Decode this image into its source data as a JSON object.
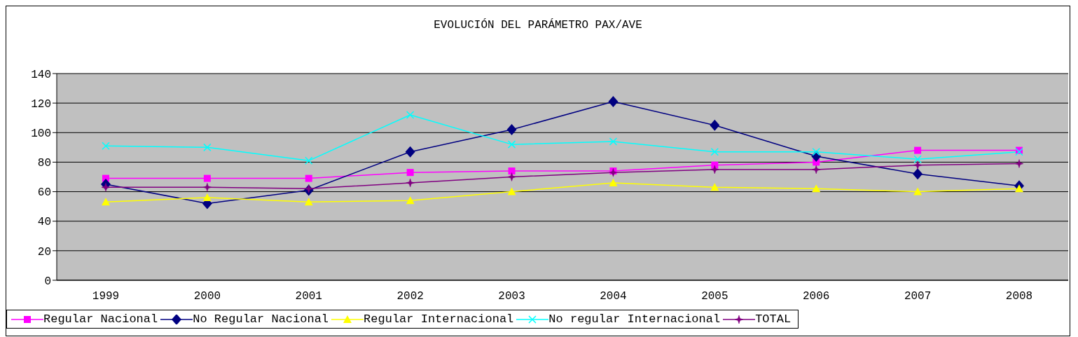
{
  "chart_data": {
    "type": "line",
    "title": "EVOLUCIÓN DEL PARÁMETRO PAX/AVE",
    "categories": [
      "1999",
      "2000",
      "2001",
      "2002",
      "2003",
      "2004",
      "2005",
      "2006",
      "2007",
      "2008"
    ],
    "series": [
      {
        "name": "Regular Nacional",
        "color": "#ff00ff",
        "marker": "square",
        "values": [
          69,
          69,
          69,
          73,
          74,
          74,
          78,
          80,
          88,
          88
        ]
      },
      {
        "name": "No Regular Nacional",
        "color": "#000080",
        "marker": "diamond",
        "values": [
          65,
          52,
          61,
          87,
          102,
          121,
          105,
          84,
          72,
          64
        ]
      },
      {
        "name": "Regular Internacional",
        "color": "#ffff00",
        "marker": "triangle",
        "values": [
          53,
          56,
          53,
          54,
          60,
          66,
          63,
          62,
          60,
          62
        ]
      },
      {
        "name": "No regular Internacional",
        "color": "#00ffff",
        "marker": "cross",
        "values": [
          91,
          90,
          81,
          112,
          92,
          94,
          87,
          87,
          82,
          87
        ]
      },
      {
        "name": "TOTAL",
        "color": "#800080",
        "marker": "star",
        "values": [
          63,
          63,
          62,
          66,
          70,
          73,
          75,
          75,
          78,
          79
        ]
      }
    ],
    "ylim": [
      0,
      140
    ],
    "yticks": [
      0,
      20,
      40,
      60,
      80,
      100,
      120,
      140
    ],
    "grid": "y",
    "legend": "bottom",
    "line_style": "solid"
  }
}
